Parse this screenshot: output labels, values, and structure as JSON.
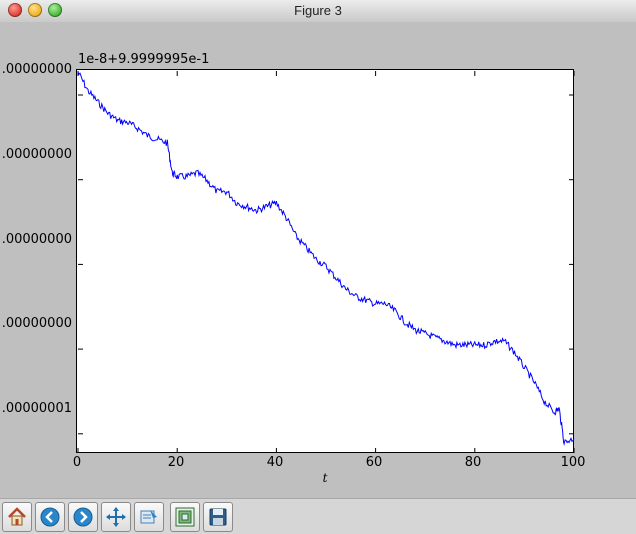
{
  "window": {
    "title": "Figure 3"
  },
  "toolbar": {
    "buttons": [
      {
        "name": "home-button",
        "icon": "home-icon"
      },
      {
        "name": "back-button",
        "icon": "back-arrow-icon"
      },
      {
        "name": "forward-button",
        "icon": "forward-arrow-icon"
      },
      {
        "name": "pan-button",
        "icon": "move-arrows-icon"
      },
      {
        "name": "zoom-button",
        "icon": "zoom-rect-icon"
      },
      {
        "name": "configure-subplots-button",
        "icon": "subplots-icon"
      },
      {
        "name": "save-button",
        "icon": "floppy-disk-icon"
      }
    ]
  },
  "chart_data": {
    "type": "line",
    "offset_text": "1e-8+9.9999995e-1",
    "xlabel": "t",
    "ylabel": "",
    "xlim": [
      0,
      100
    ],
    "xticks": [
      {
        "value": 0,
        "label": "0"
      },
      {
        "value": 20,
        "label": "20"
      },
      {
        "value": 40,
        "label": "40"
      },
      {
        "value": 60,
        "label": "60"
      },
      {
        "value": 80,
        "label": "80"
      },
      {
        "value": 100,
        "label": "100"
      }
    ],
    "yticks_visible": [
      ".00000000",
      ".00000000",
      ".00000000",
      ".00000000",
      ".00000001"
    ],
    "ylim_relative": [
      0,
      1
    ],
    "line_color": "#0000ff",
    "series": [
      {
        "x": [
          0,
          2,
          4,
          6,
          8,
          10,
          12,
          14,
          16,
          18,
          19,
          20,
          22,
          24,
          26,
          28,
          30,
          32,
          34,
          36,
          38,
          40,
          42,
          44,
          46,
          48,
          50,
          52,
          54,
          56,
          58,
          60,
          62,
          64,
          66,
          68,
          70,
          72,
          74,
          76,
          78,
          80,
          82,
          84,
          86,
          88,
          90,
          92,
          94,
          96,
          97,
          98,
          100
        ],
        "y": [
          0.0,
          0.05,
          0.08,
          0.11,
          0.13,
          0.135,
          0.15,
          0.17,
          0.18,
          0.19,
          0.27,
          0.28,
          0.28,
          0.27,
          0.29,
          0.32,
          0.32,
          0.35,
          0.36,
          0.37,
          0.36,
          0.35,
          0.39,
          0.44,
          0.47,
          0.5,
          0.52,
          0.55,
          0.58,
          0.6,
          0.61,
          0.62,
          0.62,
          0.64,
          0.67,
          0.69,
          0.7,
          0.71,
          0.72,
          0.73,
          0.73,
          0.73,
          0.73,
          0.72,
          0.72,
          0.75,
          0.79,
          0.83,
          0.88,
          0.91,
          0.9,
          0.99,
          0.98
        ]
      }
    ]
  }
}
